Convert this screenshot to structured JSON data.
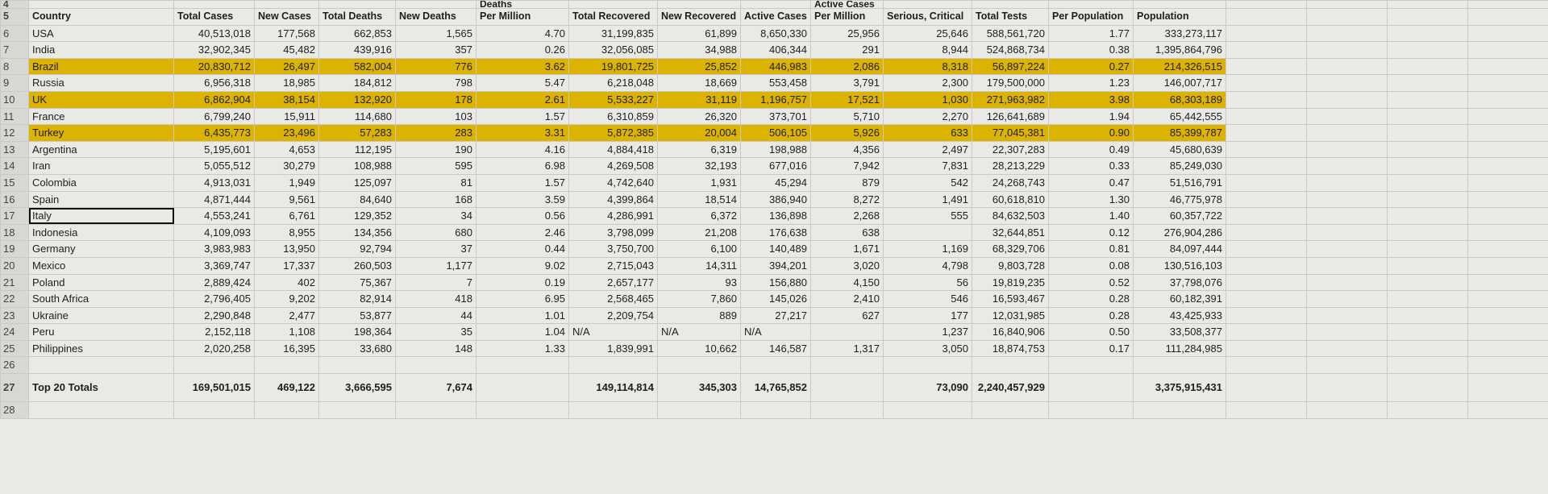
{
  "sheet": {
    "highlight_color": "#dcb300",
    "rows": [
      {
        "cells": [
          "4",
          null,
          null,
          null,
          null,
          null,
          "Deaths",
          null,
          null,
          null,
          "Active Cases"
        ],
        "top": true
      },
      {
        "cells": [
          "5",
          "Country",
          "Total Cases",
          "New Cases",
          "Total Deaths",
          "New Deaths",
          "Per Million",
          "Total Recovered",
          "New Recovered",
          "Active Cases",
          "Per Million",
          "Serious, Critical",
          "Total Tests",
          "Per Population",
          "Population"
        ],
        "header": true
      },
      {
        "cells": [
          "6",
          "USA",
          "40,513,018",
          "177,568",
          "662,853",
          "1,565",
          "4.70",
          "31,199,835",
          "61,899",
          "8,650,330",
          "25,956",
          "25,646",
          "588,561,720",
          "1.77",
          "333,273,117"
        ]
      },
      {
        "cells": [
          "7",
          "India",
          "32,902,345",
          "45,482",
          "439,916",
          "357",
          "0.26",
          "32,056,085",
          "34,988",
          "406,344",
          "291",
          "8,944",
          "524,868,734",
          "0.38",
          "1,395,864,796"
        ]
      },
      {
        "cells": [
          "8",
          "Brazil",
          "20,830,712",
          "26,497",
          "582,004",
          "776",
          "3.62",
          "19,801,725",
          "25,852",
          "446,983",
          "2,086",
          "8,318",
          "56,897,224",
          "0.27",
          "214,326,515"
        ],
        "highlighted": true
      },
      {
        "cells": [
          "9",
          "Russia",
          "6,956,318",
          "18,985",
          "184,812",
          "798",
          "5.47",
          "6,218,048",
          "18,669",
          "553,458",
          "3,791",
          "2,300",
          "179,500,000",
          "1.23",
          "146,007,717"
        ]
      },
      {
        "cells": [
          "10",
          "UK",
          "6,862,904",
          "38,154",
          "132,920",
          "178",
          "2.61",
          "5,533,227",
          "31,119",
          "1,196,757",
          "17,521",
          "1,030",
          "271,963,982",
          "3.98",
          "68,303,189"
        ],
        "highlighted": true
      },
      {
        "cells": [
          "11",
          "France",
          "6,799,240",
          "15,911",
          "114,680",
          "103",
          "1.57",
          "6,310,859",
          "26,320",
          "373,701",
          "5,710",
          "2,270",
          "126,641,689",
          "1.94",
          "65,442,555"
        ]
      },
      {
        "cells": [
          "12",
          "Turkey",
          "6,435,773",
          "23,496",
          "57,283",
          "283",
          "3.31",
          "5,872,385",
          "20,004",
          "506,105",
          "5,926",
          "633",
          "77,045,381",
          "0.90",
          "85,399,787"
        ],
        "highlighted": true
      },
      {
        "cells": [
          "13",
          "Argentina",
          "5,195,601",
          "4,653",
          "112,195",
          "190",
          "4.16",
          "4,884,418",
          "6,319",
          "198,988",
          "4,356",
          "2,497",
          "22,307,283",
          "0.49",
          "45,680,639"
        ]
      },
      {
        "cells": [
          "14",
          "Iran",
          "5,055,512",
          "30,279",
          "108,988",
          "595",
          "6.98",
          "4,269,508",
          "32,193",
          "677,016",
          "7,942",
          "7,831",
          "28,213,229",
          "0.33",
          "85,249,030"
        ]
      },
      {
        "cells": [
          "15",
          "Colombia",
          "4,913,031",
          "1,949",
          "125,097",
          "81",
          "1.57",
          "4,742,640",
          "1,931",
          "45,294",
          "879",
          "542",
          "24,268,743",
          "0.47",
          "51,516,791"
        ]
      },
      {
        "cells": [
          "16",
          "Spain",
          "4,871,444",
          "9,561",
          "84,640",
          "168",
          "3.59",
          "4,399,864",
          "18,514",
          "386,940",
          "8,272",
          "1,491",
          "60,618,810",
          "1.30",
          "46,775,978"
        ]
      },
      {
        "cells": [
          "17",
          "Italy",
          "4,553,241",
          "6,761",
          "129,352",
          "34",
          "0.56",
          "4,286,991",
          "6,372",
          "136,898",
          "2,268",
          "555",
          "84,632,503",
          "1.40",
          "60,357,722"
        ],
        "selected": 1
      },
      {
        "cells": [
          "18",
          "Indonesia",
          "4,109,093",
          "8,955",
          "134,356",
          "680",
          "2.46",
          "3,798,099",
          "21,208",
          "176,638",
          "638",
          null,
          "32,644,851",
          "0.12",
          "276,904,286"
        ]
      },
      {
        "cells": [
          "19",
          "Germany",
          "3,983,983",
          "13,950",
          "92,794",
          "37",
          "0.44",
          "3,750,700",
          "6,100",
          "140,489",
          "1,671",
          "1,169",
          "68,329,706",
          "0.81",
          "84,097,444"
        ]
      },
      {
        "cells": [
          "20",
          "Mexico",
          "3,369,747",
          "17,337",
          "260,503",
          "1,177",
          "9.02",
          "2,715,043",
          "14,311",
          "394,201",
          "3,020",
          "4,798",
          "9,803,728",
          "0.08",
          "130,516,103"
        ]
      },
      {
        "cells": [
          "21",
          "Poland",
          "2,889,424",
          "402",
          "75,367",
          "7",
          "0.19",
          "2,657,177",
          "93",
          "156,880",
          "4,150",
          "56",
          "19,819,235",
          "0.52",
          "37,798,076"
        ]
      },
      {
        "cells": [
          "22",
          "South Africa",
          "2,796,405",
          "9,202",
          "82,914",
          "418",
          "6.95",
          "2,568,465",
          "7,860",
          "145,026",
          "2,410",
          "546",
          "16,593,467",
          "0.28",
          "60,182,391"
        ]
      },
      {
        "cells": [
          "23",
          "Ukraine",
          "2,290,848",
          "2,477",
          "53,877",
          "44",
          "1.01",
          "2,209,754",
          "889",
          "27,217",
          "627",
          "177",
          "12,031,985",
          "0.28",
          "43,425,933"
        ]
      },
      {
        "cells": [
          "24",
          "Peru",
          "2,152,118",
          "1,108",
          "198,364",
          "35",
          "1.04",
          "N/A",
          "N/A",
          "N/A",
          null,
          "1,237",
          "16,840,906",
          "0.50",
          "33,508,377"
        ]
      },
      {
        "cells": [
          "25",
          "Philippines",
          "2,020,258",
          "16,395",
          "33,680",
          "148",
          "1.33",
          "1,839,991",
          "10,662",
          "146,587",
          "1,317",
          "3,050",
          "18,874,753",
          "0.17",
          "111,284,985"
        ]
      },
      {
        "cells": [
          "26"
        ]
      },
      {
        "cells": [
          "27",
          "Top 20 Totals",
          "169,501,015",
          "469,122",
          "3,666,595",
          "7,674",
          null,
          "149,114,814",
          "345,303",
          "14,765,852",
          null,
          "73,090",
          "2,240,457,929",
          null,
          "3,375,915,431"
        ],
        "bold": true
      },
      {
        "cells": [
          "28"
        ]
      }
    ]
  }
}
